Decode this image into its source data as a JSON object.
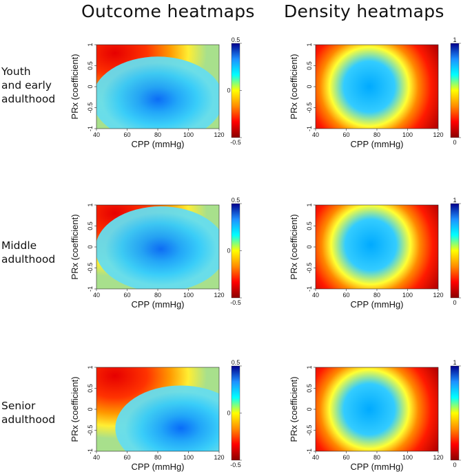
{
  "columns": {
    "outcome_title": "Outcome heatmaps",
    "density_title": "Density heatmaps"
  },
  "rows": [
    {
      "label_lines": [
        "Youth",
        "and early",
        "adulthood"
      ]
    },
    {
      "label_lines": [
        "Middle",
        "adulthood"
      ]
    },
    {
      "label_lines": [
        "Senior",
        "adulthood"
      ]
    }
  ],
  "chart_data": [
    {
      "type": "heatmap",
      "kind": "outcome",
      "group": "Youth and early adulthood",
      "xlabel": "CPP (mmHg)",
      "ylabel": "PRx (coefficient)",
      "xlim": [
        40,
        120
      ],
      "ylim": [
        -1,
        1
      ],
      "xticks": [
        "40",
        "60",
        "80",
        "100",
        "120"
      ],
      "yticks": [
        "-1",
        "-0.5",
        "0",
        "0.5",
        "1"
      ],
      "colorbar": {
        "min": -0.5,
        "max": 0.5,
        "ticks": [
          "0.5",
          "0",
          "-0.5"
        ]
      },
      "peak_cpp": 80,
      "peak_prx": -0.3
    },
    {
      "type": "heatmap",
      "kind": "density",
      "group": "Youth and early adulthood",
      "xlabel": "CPP (mmHg)",
      "ylabel": "PRx (coefficient)",
      "xlim": [
        40,
        120
      ],
      "ylim": [
        -1,
        1
      ],
      "xticks": [
        "40",
        "60",
        "80",
        "100",
        "120"
      ],
      "yticks": [
        "-1",
        "-0.5",
        "0",
        "0.5",
        "1"
      ],
      "colorbar": {
        "min": 0,
        "max": 1,
        "ticks": [
          "1",
          "0"
        ]
      },
      "peak_cpp": 75,
      "peak_prx": 0
    },
    {
      "type": "heatmap",
      "kind": "outcome",
      "group": "Middle adulthood",
      "xlabel": "CPP (mmHg)",
      "ylabel": "PRx (coefficient)",
      "xlim": [
        40,
        120
      ],
      "ylim": [
        -1,
        1
      ],
      "xticks": [
        "40",
        "60",
        "80",
        "100",
        "120"
      ],
      "yticks": [
        "-1",
        "-0.5",
        "0",
        "0.5",
        "1"
      ],
      "colorbar": {
        "min": -0.5,
        "max": 0.5,
        "ticks": [
          "0.5",
          "0",
          "-0.5"
        ]
      },
      "peak_cpp": 82,
      "peak_prx": -0.05
    },
    {
      "type": "heatmap",
      "kind": "density",
      "group": "Middle adulthood",
      "xlabel": "CPP (mmHg)",
      "ylabel": "PRx (coefficient)",
      "xlim": [
        40,
        120
      ],
      "ylim": [
        -1,
        1
      ],
      "xticks": [
        "40",
        "60",
        "80",
        "100",
        "120"
      ],
      "yticks": [
        "-1",
        "-0.5",
        "0",
        "0.5",
        "1"
      ],
      "colorbar": {
        "min": 0,
        "max": 1,
        "ticks": [
          "1",
          "0"
        ]
      },
      "peak_cpp": 76,
      "peak_prx": 0.05
    },
    {
      "type": "heatmap",
      "kind": "outcome",
      "group": "Senior adulthood",
      "xlabel": "CPP (mmHg)",
      "ylabel": "PRx (coefficient)",
      "xlim": [
        40,
        120
      ],
      "ylim": [
        -1,
        1
      ],
      "xticks": [
        "40",
        "60",
        "80",
        "100",
        "120"
      ],
      "yticks": [
        "-1",
        "-0.5",
        "0",
        "0.5",
        "1"
      ],
      "colorbar": {
        "min": -0.5,
        "max": 0.5,
        "ticks": [
          "0.5",
          "0",
          "-0.5"
        ]
      },
      "peak_cpp": 95,
      "peak_prx": -0.45
    },
    {
      "type": "heatmap",
      "kind": "density",
      "group": "Senior adulthood",
      "xlabel": "CPP (mmHg)",
      "ylabel": "PRx (coefficient)",
      "xlim": [
        40,
        120
      ],
      "ylim": [
        -1,
        1
      ],
      "xticks": [
        "40",
        "60",
        "80",
        "100",
        "120"
      ],
      "yticks": [
        "-1",
        "-0.5",
        "0",
        "0.5",
        "1"
      ],
      "colorbar": {
        "min": 0,
        "max": 1,
        "ticks": [
          "1",
          "0"
        ]
      },
      "peak_cpp": 75,
      "peak_prx": 0
    }
  ]
}
